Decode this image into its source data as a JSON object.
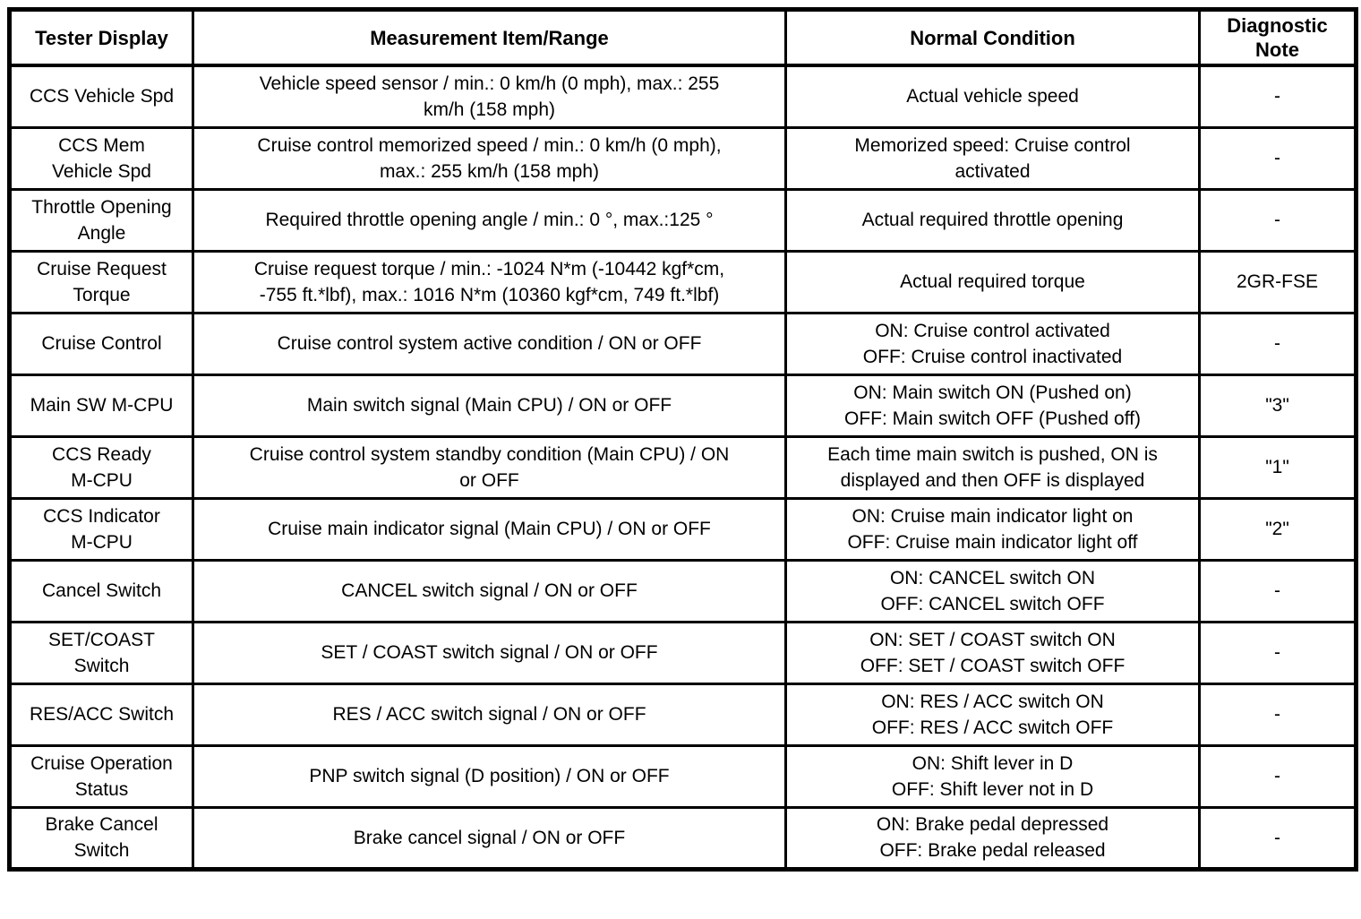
{
  "table": {
    "headers": {
      "tester": "Tester Display",
      "item": "Measurement Item/Range",
      "condition": "Normal Condition",
      "note": "Diagnostic\nNote"
    },
    "rows": [
      {
        "tester": "CCS Vehicle Spd",
        "item": "Vehicle speed sensor / min.: 0 km/h (0 mph), max.: 255\nkm/h (158 mph)",
        "condition": "Actual vehicle speed",
        "note": "-"
      },
      {
        "tester": "CCS Mem\nVehicle Spd",
        "item": "Cruise control memorized speed / min.: 0 km/h (0 mph),\nmax.: 255 km/h (158 mph)",
        "condition": "Memorized speed: Cruise control\nactivated",
        "note": "-"
      },
      {
        "tester": "Throttle Opening\nAngle",
        "item": "Required throttle opening angle / min.: 0 °, max.:125 °",
        "condition": "Actual required throttle opening",
        "note": "-"
      },
      {
        "tester": "Cruise Request\nTorque",
        "item": "Cruise request torque / min.: -1024 N*m (-10442 kgf*cm,\n-755 ft.*lbf), max.: 1016 N*m (10360 kgf*cm, 749 ft.*lbf)",
        "condition": "Actual required torque",
        "note": "2GR-FSE"
      },
      {
        "tester": "Cruise Control",
        "item": "Cruise control system active condition / ON or OFF",
        "condition": "ON: Cruise control activated\nOFF: Cruise control inactivated",
        "note": "-"
      },
      {
        "tester": "Main SW M-CPU",
        "item": "Main switch signal (Main CPU) / ON or OFF",
        "condition": "ON: Main switch ON (Pushed on)\nOFF: Main switch OFF (Pushed off)",
        "note": "\"3\""
      },
      {
        "tester": "CCS Ready\nM-CPU",
        "item": "Cruise control system standby condition (Main CPU) / ON\nor OFF",
        "condition": "Each time main switch is pushed, ON is\ndisplayed and then OFF is displayed",
        "note": "\"1\""
      },
      {
        "tester": "CCS Indicator\nM-CPU",
        "item": "Cruise main indicator signal (Main CPU) / ON or OFF",
        "condition": "ON: Cruise main indicator light on\nOFF: Cruise main indicator light off",
        "note": "\"2\""
      },
      {
        "tester": "Cancel Switch",
        "item": "CANCEL switch signal / ON or OFF",
        "condition": "ON: CANCEL switch ON\nOFF: CANCEL switch OFF",
        "note": "-"
      },
      {
        "tester": "SET/COAST\nSwitch",
        "item": "SET / COAST switch signal / ON or OFF",
        "condition": "ON: SET / COAST switch ON\nOFF: SET / COAST switch OFF",
        "note": "-"
      },
      {
        "tester": "RES/ACC Switch",
        "item": "RES / ACC switch signal / ON or OFF",
        "condition": "ON: RES / ACC switch ON\nOFF: RES / ACC switch OFF",
        "note": "-"
      },
      {
        "tester": "Cruise Operation\nStatus",
        "item": "PNP switch signal (D position) / ON or OFF",
        "condition": "ON: Shift lever in D\nOFF: Shift lever not in D",
        "note": "-"
      },
      {
        "tester": "Brake Cancel\nSwitch",
        "item": "Brake cancel signal / ON or OFF",
        "condition": "ON: Brake pedal depressed\nOFF: Brake pedal released",
        "note": "-"
      }
    ]
  }
}
